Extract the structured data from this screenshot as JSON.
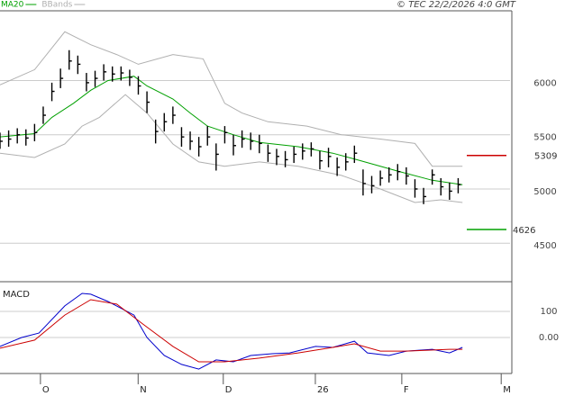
{
  "header": {
    "copyright": "© TEC 22/2/2026 4:0 GMT"
  },
  "chart_data": [
    {
      "type": "ohlc",
      "x": [
        0,
        2,
        4,
        6,
        8,
        10,
        12,
        14,
        16,
        18,
        20,
        22,
        24,
        26,
        28,
        30,
        32,
        34,
        36,
        38,
        40,
        42,
        44,
        46,
        48,
        50,
        52,
        54,
        56,
        58,
        60,
        62,
        64,
        66,
        68,
        70,
        72,
        74,
        76,
        78,
        80,
        82,
        84,
        86,
        88,
        90,
        92,
        94,
        96,
        98,
        100,
        102,
        104,
        106
      ],
      "close": [
        5440,
        5460,
        5500,
        5470,
        5520,
        5680,
        5900,
        6020,
        6180,
        6150,
        5980,
        6020,
        6080,
        6060,
        6070,
        6030,
        5950,
        5800,
        5530,
        5620,
        5680,
        5480,
        5440,
        5390,
        5480,
        5320,
        5520,
        5400,
        5460,
        5440,
        5420,
        5330,
        5300,
        5270,
        5320,
        5350,
        5370,
        5260,
        5300,
        5200,
        5250,
        5330,
        5050,
        5030,
        5100,
        5130,
        5160,
        5120,
        5000,
        4930,
        5130,
        5020,
        4980,
        5040
      ],
      "high": [
        5520,
        5540,
        5560,
        5550,
        5600,
        5760,
        5980,
        6110,
        6280,
        6230,
        6070,
        6090,
        6150,
        6130,
        6130,
        6100,
        6040,
        5900,
        5640,
        5700,
        5760,
        5570,
        5530,
        5480,
        5580,
        5420,
        5580,
        5500,
        5540,
        5520,
        5500,
        5410,
        5370,
        5350,
        5390,
        5420,
        5430,
        5350,
        5380,
        5290,
        5330,
        5400,
        5180,
        5120,
        5170,
        5200,
        5230,
        5200,
        5090,
        5010,
        5180,
        5100,
        5060,
        5100
      ],
      "low": [
        5370,
        5390,
        5420,
        5400,
        5440,
        5600,
        5810,
        5930,
        6100,
        6060,
        5900,
        5940,
        6000,
        5990,
        6000,
        5950,
        5870,
        5700,
        5420,
        5530,
        5600,
        5390,
        5360,
        5300,
        5400,
        5170,
        5420,
        5310,
        5380,
        5360,
        5330,
        5250,
        5220,
        5200,
        5240,
        5270,
        5300,
        5180,
        5200,
        5120,
        5170,
        5240,
        4940,
        4960,
        5030,
        5060,
        5080,
        5040,
        4920,
        4860,
        5040,
        4940,
        4900,
        4960
      ],
      "bar_color": "#000000",
      "overlays": [
        {
          "name": "MA20",
          "color": "#00a000",
          "x": [
            0,
            8,
            12,
            17,
            21,
            25,
            31,
            34,
            40,
            44,
            48,
            54,
            60,
            69,
            77,
            83,
            92,
            100,
            107
          ],
          "values": [
            5480,
            5510,
            5660,
            5790,
            5910,
            6000,
            6040,
            5950,
            5830,
            5700,
            5580,
            5500,
            5430,
            5390,
            5330,
            5265,
            5165,
            5080,
            5040
          ]
        },
        {
          "name": "BBands",
          "color": "#b0b0b0",
          "x_upper": [
            0,
            8,
            15,
            21,
            27,
            32,
            40,
            47,
            52,
            56,
            62,
            71,
            79,
            88,
            96,
            100,
            107
          ],
          "upper": [
            5960,
            6100,
            6450,
            6330,
            6240,
            6150,
            6240,
            6200,
            5790,
            5700,
            5620,
            5580,
            5500,
            5460,
            5420,
            5210,
            5210
          ],
          "x_lower": [
            0,
            8,
            15,
            19,
            23,
            29,
            34,
            40,
            46,
            52,
            60,
            69,
            79,
            88,
            96,
            102,
            107
          ],
          "lower": [
            5330,
            5290,
            5415,
            5580,
            5660,
            5870,
            5700,
            5415,
            5250,
            5210,
            5250,
            5210,
            5125,
            5000,
            4875,
            4900,
            4875
          ]
        }
      ],
      "levels": [
        {
          "value": 5309,
          "color": "#cc0000"
        },
        {
          "value": 4626,
          "color": "#00a000"
        }
      ],
      "xlim": [
        0,
        118
      ],
      "ylim": [
        4145,
        6643
      ],
      "yticks": [
        4500,
        5000,
        5500,
        6000
      ],
      "grid": true
    },
    {
      "type": "macd",
      "title": "MACD",
      "series": [
        {
          "color": "#0000cc",
          "x": [
            0,
            5,
            9,
            15,
            19,
            21,
            25,
            31,
            34,
            38,
            42,
            46,
            50,
            54,
            58,
            63,
            67,
            73,
            77,
            82,
            85,
            90,
            94,
            100,
            104,
            107
          ],
          "values": [
            -34,
            0,
            17,
            121,
            169,
            166,
            138,
            86,
            0,
            -69,
            -103,
            -121,
            -86,
            -93,
            -69,
            -62,
            -59,
            -34,
            -38,
            -14,
            -59,
            -69,
            -52,
            -45,
            -59,
            -38
          ]
        },
        {
          "color": "#cc0000",
          "x": [
            0,
            8,
            15,
            21,
            27,
            33,
            40,
            46,
            52,
            60,
            69,
            77,
            82,
            88,
            94,
            104,
            107
          ],
          "values": [
            -41,
            -10,
            86,
            145,
            128,
            52,
            -34,
            -93,
            -93,
            -79,
            -59,
            -38,
            -24,
            -52,
            -52,
            -45,
            -45
          ]
        }
      ],
      "xlim": [
        0,
        118
      ],
      "ylim": [
        -138,
        214
      ],
      "yticks": [
        {
          "value": 0,
          "label": "0.00"
        },
        100
      ],
      "xticks": [
        {
          "value": 10.4,
          "label": "O"
        },
        {
          "value": 33,
          "label": "N"
        },
        {
          "value": 52.7,
          "label": "D"
        },
        {
          "value": 74,
          "label": "26"
        },
        {
          "value": 94,
          "label": "F"
        },
        {
          "value": 117,
          "label": "M"
        }
      ],
      "grid": true
    }
  ]
}
